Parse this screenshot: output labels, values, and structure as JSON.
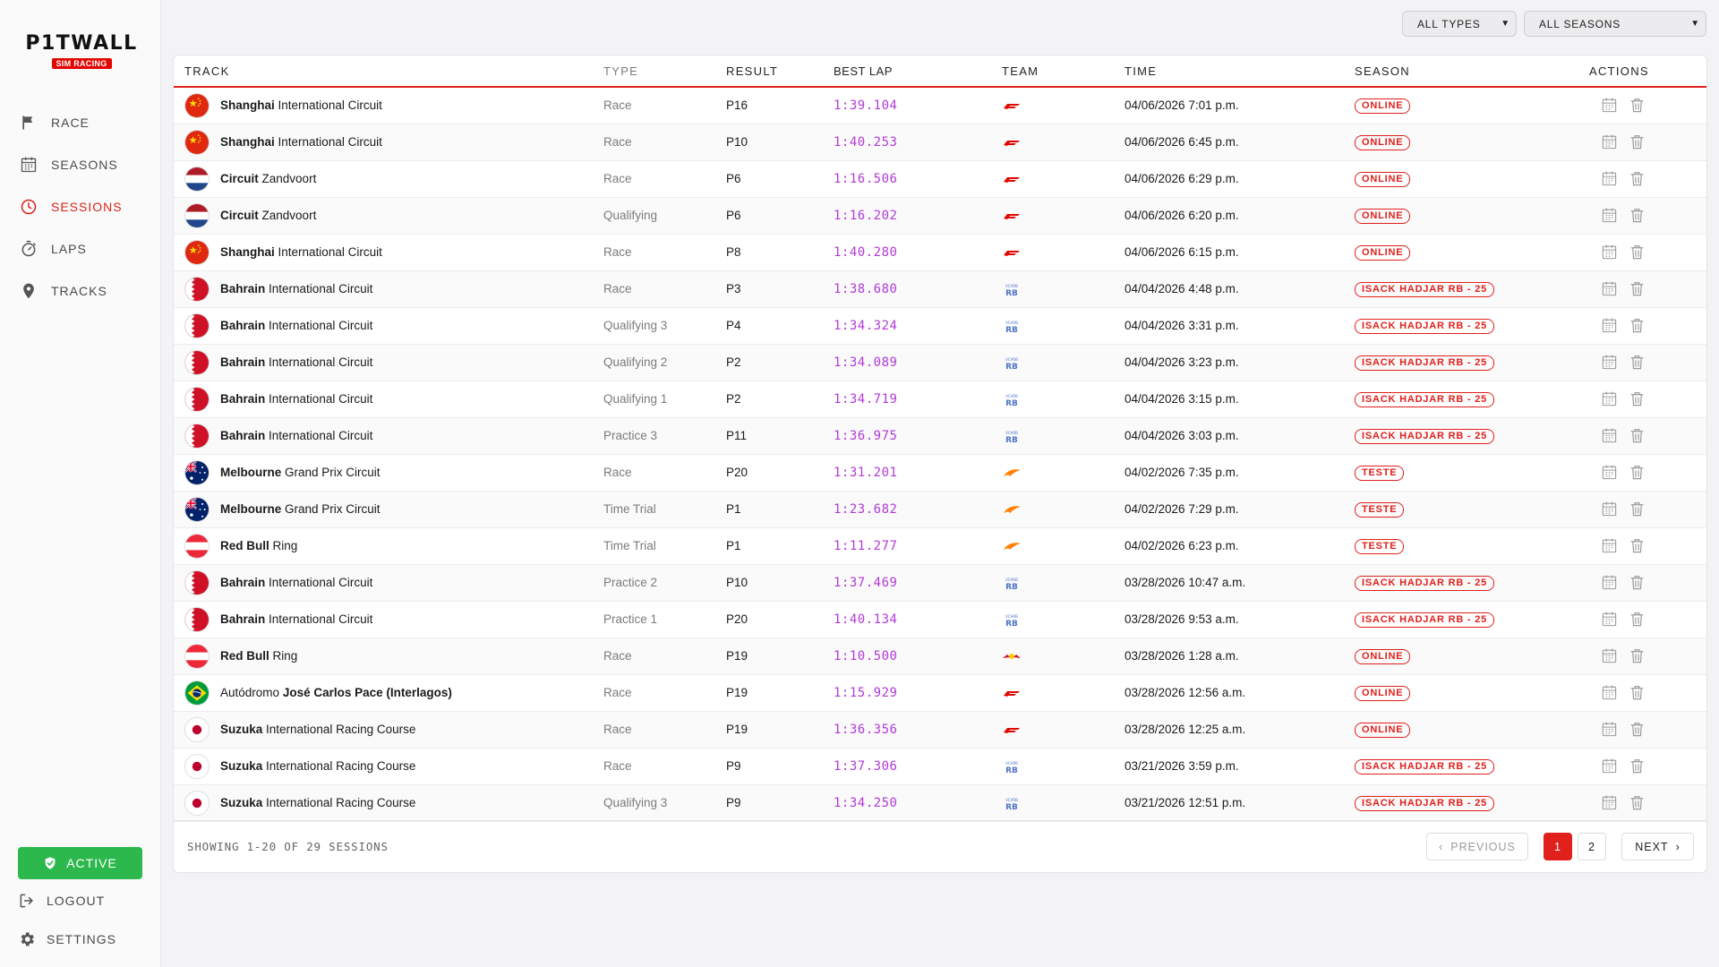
{
  "logo": {
    "title": "P1TWALL",
    "subtitle": "SIM RACING"
  },
  "nav": [
    {
      "label": "RACE",
      "icon": "flag-icon"
    },
    {
      "label": "SEASONS",
      "icon": "calendar-icon"
    },
    {
      "label": "SESSIONS",
      "icon": "clock-icon",
      "active": true
    },
    {
      "label": "LAPS",
      "icon": "stopwatch-icon"
    },
    {
      "label": "TRACKS",
      "icon": "map-pin-icon"
    }
  ],
  "status_button": "ACTIVE",
  "logout_label": "LOGOUT",
  "settings_label": "SETTINGS",
  "filters": {
    "type": "ALL TYPES",
    "season": "ALL SEASONS"
  },
  "columns": [
    "TRACK",
    "TYPE",
    "RESULT",
    "BEST LAP",
    "TEAM",
    "TIME",
    "SEASON",
    "ACTIONS"
  ],
  "rows": [
    {
      "flag": "china",
      "bold": "Shanghai",
      "rest": "International Circuit",
      "type": "Race",
      "result": "P16",
      "best": "1:39.104",
      "team": "ferrari-logo",
      "time": "04/06/2026 7:01 p.m.",
      "season": "ONLINE"
    },
    {
      "flag": "china",
      "bold": "Shanghai",
      "rest": "International Circuit",
      "type": "Race",
      "result": "P10",
      "best": "1:40.253",
      "team": "ferrari-logo",
      "time": "04/06/2026 6:45 p.m.",
      "season": "ONLINE"
    },
    {
      "flag": "netherlands",
      "bold": "Circuit",
      "rest": "Zandvoort",
      "type": "Race",
      "result": "P6",
      "best": "1:16.506",
      "team": "ferrari-logo",
      "time": "04/06/2026 6:29 p.m.",
      "season": "ONLINE"
    },
    {
      "flag": "netherlands",
      "bold": "Circuit",
      "rest": "Zandvoort",
      "type": "Qualifying",
      "result": "P6",
      "best": "1:16.202",
      "team": "ferrari-logo",
      "time": "04/06/2026 6:20 p.m.",
      "season": "ONLINE"
    },
    {
      "flag": "china",
      "bold": "Shanghai",
      "rest": "International Circuit",
      "type": "Race",
      "result": "P8",
      "best": "1:40.280",
      "team": "ferrari-logo",
      "time": "04/06/2026 6:15 p.m.",
      "season": "ONLINE"
    },
    {
      "flag": "bahrain",
      "bold": "Bahrain",
      "rest": "International Circuit",
      "type": "Race",
      "result": "P3",
      "best": "1:38.680",
      "team": "racing-bulls-logo",
      "time": "04/04/2026 4:48 p.m.",
      "season": "ISACK HADJAR RB - 25"
    },
    {
      "flag": "bahrain",
      "bold": "Bahrain",
      "rest": "International Circuit",
      "type": "Qualifying 3",
      "result": "P4",
      "best": "1:34.324",
      "team": "racing-bulls-logo",
      "time": "04/04/2026 3:31 p.m.",
      "season": "ISACK HADJAR RB - 25"
    },
    {
      "flag": "bahrain",
      "bold": "Bahrain",
      "rest": "International Circuit",
      "type": "Qualifying 2",
      "result": "P2",
      "best": "1:34.089",
      "team": "racing-bulls-logo",
      "time": "04/04/2026 3:23 p.m.",
      "season": "ISACK HADJAR RB - 25"
    },
    {
      "flag": "bahrain",
      "bold": "Bahrain",
      "rest": "International Circuit",
      "type": "Qualifying 1",
      "result": "P2",
      "best": "1:34.719",
      "team": "racing-bulls-logo",
      "time": "04/04/2026 3:15 p.m.",
      "season": "ISACK HADJAR RB - 25"
    },
    {
      "flag": "bahrain",
      "bold": "Bahrain",
      "rest": "International Circuit",
      "type": "Practice 3",
      "result": "P11",
      "best": "1:36.975",
      "team": "racing-bulls-logo",
      "time": "04/04/2026 3:03 p.m.",
      "season": "ISACK HADJAR RB - 25"
    },
    {
      "flag": "australia",
      "bold": "Melbourne",
      "rest": "Grand Prix Circuit",
      "type": "Race",
      "result": "P20",
      "best": "1:31.201",
      "team": "mclaren-logo",
      "time": "04/02/2026 7:35 p.m.",
      "season": "TESTE"
    },
    {
      "flag": "australia",
      "bold": "Melbourne",
      "rest": "Grand Prix Circuit",
      "type": "Time Trial",
      "result": "P1",
      "best": "1:23.682",
      "team": "mclaren-logo",
      "time": "04/02/2026 7:29 p.m.",
      "season": "TESTE"
    },
    {
      "flag": "austria",
      "bold": "Red Bull",
      "rest": "Ring",
      "type": "Time Trial",
      "result": "P1",
      "best": "1:11.277",
      "team": "mclaren-logo",
      "time": "04/02/2026 6:23 p.m.",
      "season": "TESTE"
    },
    {
      "flag": "bahrain",
      "bold": "Bahrain",
      "rest": "International Circuit",
      "type": "Practice 2",
      "result": "P10",
      "best": "1:37.469",
      "team": "racing-bulls-logo",
      "time": "03/28/2026 10:47 a.m.",
      "season": "ISACK HADJAR RB - 25"
    },
    {
      "flag": "bahrain",
      "bold": "Bahrain",
      "rest": "International Circuit",
      "type": "Practice 1",
      "result": "P20",
      "best": "1:40.134",
      "team": "racing-bulls-logo",
      "time": "03/28/2026 9:53 a.m.",
      "season": "ISACK HADJAR RB - 25"
    },
    {
      "flag": "austria",
      "bold": "Red Bull",
      "rest": "Ring",
      "type": "Race",
      "result": "P19",
      "best": "1:10.500",
      "team": "red-bull-logo",
      "time": "03/28/2026 1:28 a.m.",
      "season": "ONLINE"
    },
    {
      "flag": "brazil",
      "pre": "Autódromo",
      "bold": "José Carlos Pace (Interlagos)",
      "rest": "",
      "type": "Race",
      "result": "P19",
      "best": "1:15.929",
      "team": "ferrari-logo",
      "time": "03/28/2026 12:56 a.m.",
      "season": "ONLINE"
    },
    {
      "flag": "japan",
      "bold": "Suzuka",
      "rest": "International Racing Course",
      "type": "Race",
      "result": "P19",
      "best": "1:36.356",
      "team": "ferrari-logo",
      "time": "03/28/2026 12:25 a.m.",
      "season": "ONLINE"
    },
    {
      "flag": "japan",
      "bold": "Suzuka",
      "rest": "International Racing Course",
      "type": "Race",
      "result": "P9",
      "best": "1:37.306",
      "team": "racing-bulls-logo",
      "time": "03/21/2026 3:59 p.m.",
      "season": "ISACK HADJAR RB - 25"
    },
    {
      "flag": "japan",
      "bold": "Suzuka",
      "rest": "International Racing Course",
      "type": "Qualifying 3",
      "result": "P9",
      "best": "1:34.250",
      "team": "racing-bulls-logo",
      "time": "03/21/2026 12:51 p.m.",
      "season": "ISACK HADJAR RB - 25"
    }
  ],
  "footer": {
    "showing": "SHOWING 1-20 OF 29 SESSIONS",
    "prev": "PREVIOUS",
    "pages": [
      "1",
      "2"
    ],
    "current_page": "1",
    "next": "NEXT"
  },
  "colors": {
    "accent": "#e0201b",
    "best_lap": "#b23ad6",
    "active": "#2db84d"
  }
}
